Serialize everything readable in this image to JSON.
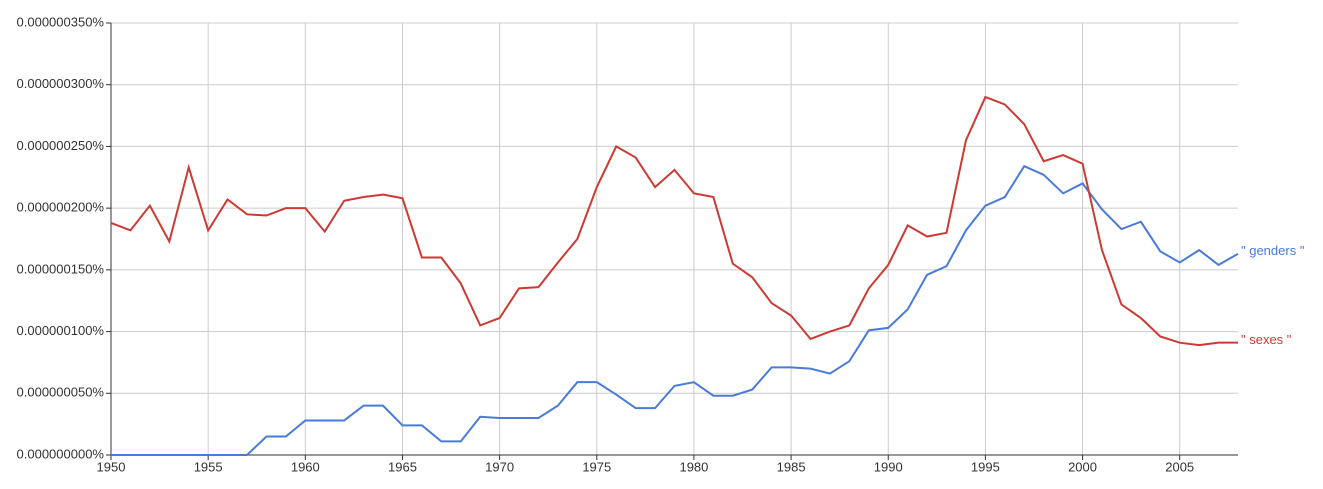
{
  "chart_data": {
    "type": "line",
    "x": [
      1950,
      1951,
      1952,
      1953,
      1954,
      1955,
      1956,
      1957,
      1958,
      1959,
      1960,
      1961,
      1962,
      1963,
      1964,
      1965,
      1966,
      1967,
      1968,
      1969,
      1970,
      1971,
      1972,
      1973,
      1974,
      1975,
      1976,
      1977,
      1978,
      1979,
      1980,
      1981,
      1982,
      1983,
      1984,
      1985,
      1986,
      1987,
      1988,
      1989,
      1990,
      1991,
      1992,
      1993,
      1994,
      1995,
      1996,
      1997,
      1998,
      1999,
      2000,
      2001,
      2002,
      2003,
      2004,
      2005,
      2006,
      2007,
      2008
    ],
    "series": [
      {
        "name": "\" genders \"",
        "color": "#4a7bd8",
        "values": [
          0,
          0,
          0,
          0,
          0,
          0,
          0,
          0,
          1.5e-08,
          1.5e-08,
          2.8e-08,
          2.8e-08,
          2.8e-08,
          4e-08,
          4e-08,
          2.4e-08,
          2.4e-08,
          1.1e-08,
          1.1e-08,
          3.1e-08,
          3e-08,
          3e-08,
          3e-08,
          4e-08,
          5.9e-08,
          5.9e-08,
          4.9e-08,
          3.8e-08,
          3.8e-08,
          5.6e-08,
          5.9e-08,
          4.8e-08,
          4.8e-08,
          5.3e-08,
          7.1e-08,
          7.1e-08,
          7e-08,
          6.6e-08,
          7.6e-08,
          1.01e-07,
          1.03e-07,
          1.18e-07,
          1.46e-07,
          1.53e-07,
          1.82e-07,
          2.02e-07,
          2.09e-07,
          2.34e-07,
          2.27e-07,
          2.12e-07,
          2.2e-07,
          1.99e-07,
          1.83e-07,
          1.89e-07,
          1.65e-07,
          1.56e-07,
          1.66e-07,
          1.54e-07,
          1.63e-07
        ]
      },
      {
        "name": "\" sexes \"",
        "color": "#cc3a33",
        "values": [
          1.88e-07,
          1.82e-07,
          2.02e-07,
          1.73e-07,
          2.33e-07,
          1.82e-07,
          2.07e-07,
          1.95e-07,
          1.94e-07,
          2e-07,
          2e-07,
          1.81e-07,
          2.06e-07,
          2.09e-07,
          2.11e-07,
          2.08e-07,
          1.6e-07,
          1.6e-07,
          1.39e-07,
          1.05e-07,
          1.11e-07,
          1.35e-07,
          1.36e-07,
          1.56e-07,
          1.75e-07,
          2.17e-07,
          2.5e-07,
          2.41e-07,
          2.17e-07,
          2.31e-07,
          2.12e-07,
          2.09e-07,
          1.55e-07,
          1.44e-07,
          1.23e-07,
          1.13e-07,
          9.4e-08,
          1e-07,
          1.05e-07,
          1.35e-07,
          1.54e-07,
          1.86e-07,
          1.77e-07,
          1.8e-07,
          2.55e-07,
          2.9e-07,
          2.84e-07,
          2.68e-07,
          2.38e-07,
          2.43e-07,
          2.36e-07,
          1.66e-07,
          1.22e-07,
          1.11e-07,
          9.6e-08,
          9.1e-08,
          8.9e-08,
          9.1e-08,
          9.1e-08
        ]
      }
    ],
    "xlim": [
      1950,
      2008
    ],
    "xticks": [
      1950,
      1955,
      1960,
      1965,
      1970,
      1975,
      1980,
      1985,
      1990,
      1995,
      2000,
      2005
    ],
    "ylim": [
      0,
      3.5e-07
    ],
    "yticks": [
      {
        "value": 0,
        "label": "0.000000000%"
      },
      {
        "value": 5e-08,
        "label": "0.000000050%"
      },
      {
        "value": 1e-07,
        "label": "0.000000100%"
      },
      {
        "value": 1.5e-07,
        "label": "0.000000150%"
      },
      {
        "value": 2e-07,
        "label": "0.000000200%"
      },
      {
        "value": 2.5e-07,
        "label": "0.000000250%"
      },
      {
        "value": 3e-07,
        "label": "0.000000300%"
      },
      {
        "value": 3.5e-07,
        "label": "0.000000350%"
      }
    ],
    "grid": true
  }
}
